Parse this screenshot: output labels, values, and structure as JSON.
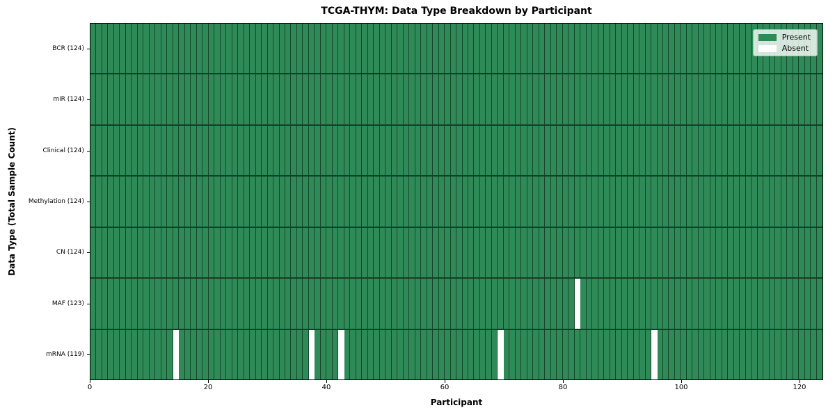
{
  "chart_data": {
    "type": "heatmap",
    "title": "TCGA-THYM: Data Type Breakdown by Participant",
    "xlabel": "Participant",
    "ylabel": "Data Type (Total Sample Count)",
    "n_participants": 124,
    "xlim": [
      0,
      124
    ],
    "x_ticks": [
      0,
      20,
      40,
      60,
      80,
      100,
      120
    ],
    "rows": [
      {
        "data_type": "BCR",
        "label": "BCR (124)",
        "present_count": 124,
        "absent_participants": []
      },
      {
        "data_type": "miR",
        "label": "miR (124)",
        "present_count": 124,
        "absent_participants": []
      },
      {
        "data_type": "Clinical",
        "label": "Clinical (124)",
        "present_count": 124,
        "absent_participants": []
      },
      {
        "data_type": "Methylation",
        "label": "Methylation (124)",
        "present_count": 124,
        "absent_participants": []
      },
      {
        "data_type": "CN",
        "label": "CN (124)",
        "present_count": 124,
        "absent_participants": []
      },
      {
        "data_type": "MAF",
        "label": "MAF (123)",
        "present_count": 123,
        "absent_participants": [
          82
        ]
      },
      {
        "data_type": "mRNA",
        "label": "mRNA (119)",
        "present_count": 119,
        "absent_participants": [
          14,
          37,
          42,
          69,
          95
        ]
      }
    ],
    "legend": {
      "position": "upper right",
      "entries": [
        {
          "label": "Present",
          "color": "#2e8b57"
        },
        {
          "label": "Absent",
          "color": "#ffffff"
        }
      ]
    },
    "colors": {
      "present": "#2e8b57",
      "absent": "#ffffff",
      "grid_line": "rgba(0,0,0,0.5)",
      "spine": "#000000"
    },
    "grid": true
  }
}
